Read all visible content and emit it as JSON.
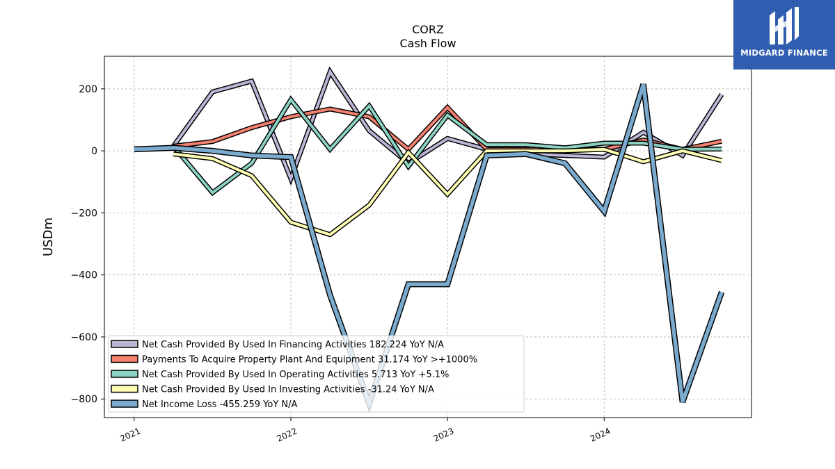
{
  "brand": {
    "name": "MIDGARD FINANCE",
    "logo_icon": "midgard-m-logo-icon",
    "background": "#2f5db0"
  },
  "chart_data": {
    "type": "line",
    "title": "CORZ",
    "subtitle": "Cash Flow",
    "xlabel": "",
    "ylabel": "USDm",
    "ylim": [
      -860,
      305
    ],
    "xlim": [
      2020.81,
      2024.94
    ],
    "yticks": [
      200,
      0,
      -200,
      -400,
      -600,
      -800
    ],
    "ytick_labels": [
      "200",
      "0",
      "−200",
      "−400",
      "−600",
      "−800"
    ],
    "xticks": [
      2021,
      2022,
      2023,
      2024
    ],
    "xtick_labels": [
      "2021",
      "2022",
      "2023",
      "2024"
    ],
    "grid": true,
    "legend_position": "lower-left",
    "series": [
      {
        "name": "Net Cash Provided By Used In Financing Activities",
        "legend": "Net Cash Provided By Used In Financing Activities  182.224 YoY N/A",
        "color": "#bcb6d6",
        "width": 4,
        "x": [
          2021.25,
          2021.5,
          2021.75,
          2022.0,
          2022.25,
          2022.5,
          2022.75,
          2023.0,
          2023.25,
          2023.5,
          2023.75,
          2024.0,
          2024.25,
          2024.5,
          2024.75
        ],
        "y": [
          15,
          190,
          225,
          -90,
          255,
          65,
          -40,
          40,
          5,
          -10,
          -15,
          -20,
          60,
          -15,
          182
        ]
      },
      {
        "name": "Payments To Acquire Property Plant And Equipment",
        "legend": "Payments To Acquire Property Plant And Equipment  31.174 YoY >+1000%",
        "color": "#f4806f",
        "width": 4,
        "x": [
          2021.25,
          2021.5,
          2021.75,
          2022.0,
          2022.25,
          2022.5,
          2022.75,
          2023.0,
          2023.25,
          2023.5,
          2023.75,
          2024.0,
          2024.25,
          2024.5,
          2024.75
        ],
        "y": [
          15,
          30,
          75,
          110,
          135,
          110,
          5,
          140,
          5,
          5,
          5,
          5,
          35,
          5,
          31
        ]
      },
      {
        "name": "Net Cash Provided By Used In Operating Activities",
        "legend": "Net Cash Provided By Used In Operating Activities  5.713 YoY +5.1%",
        "color": "#8dd3c4",
        "width": 4,
        "x": [
          2021.25,
          2021.5,
          2021.75,
          2022.0,
          2022.25,
          2022.5,
          2022.75,
          2023.0,
          2023.25,
          2023.5,
          2023.75,
          2024.0,
          2024.25,
          2024.5,
          2024.75
        ],
        "y": [
          15,
          -135,
          -40,
          165,
          5,
          145,
          -50,
          115,
          20,
          20,
          10,
          25,
          25,
          5,
          6
        ]
      },
      {
        "name": "Net Cash Provided By Used In Investing Activities",
        "legend": "Net Cash Provided By Used In Investing Activities  -31.24 YoY N/A",
        "color": "#ffffb3",
        "width": 4,
        "x": [
          2021.25,
          2021.5,
          2021.75,
          2022.0,
          2022.25,
          2022.5,
          2022.75,
          2023.0,
          2023.25,
          2023.5,
          2023.75,
          2024.0,
          2024.25,
          2024.5,
          2024.75
        ],
        "y": [
          -10,
          -25,
          -80,
          -230,
          -270,
          -175,
          -5,
          -140,
          0,
          0,
          0,
          5,
          -35,
          0,
          -31
        ]
      },
      {
        "name": "Net Income Loss",
        "legend": "Net Income Loss  -455.259 YoY N/A",
        "color": "#7aabcf",
        "width": 5.5,
        "x": [
          2021.0,
          2021.25,
          2021.5,
          2021.75,
          2022.0,
          2022.25,
          2022.5,
          2022.75,
          2023.0,
          2023.25,
          2023.5,
          2023.75,
          2024.0,
          2024.25,
          2024.5,
          2024.75
        ],
        "y": [
          5,
          10,
          0,
          -15,
          -20,
          -465,
          -815,
          -430,
          -430,
          -15,
          -10,
          -40,
          -195,
          215,
          -810,
          -455
        ]
      }
    ]
  }
}
